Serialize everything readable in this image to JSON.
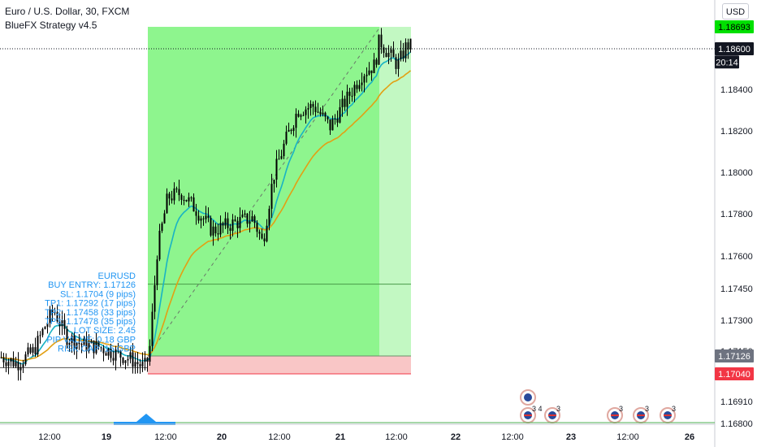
{
  "header": {
    "symbol_line": "Euro / U.S. Dollar, 30, FXCM",
    "indicator_line": "BlueFX Strategy v4.5",
    "currency_button": "USD"
  },
  "colors": {
    "profit_zone": "#8ef58e",
    "profit_zone_light": "#c2f8c2",
    "loss_zone": "#f9c6c6",
    "candle": "#000000",
    "ema_fast": "#19b3c4",
    "ema_slow": "#e2a014",
    "info_text": "#2196f3",
    "tag_green": "#00e000",
    "tag_dark": "#131722",
    "tag_gray": "#6e7380",
    "tag_red": "#f23645"
  },
  "chart_data": {
    "type": "candlestick",
    "ylim": [
      1.1675,
      1.1878
    ],
    "x_ticks": [
      "12:00",
      "19",
      "12:00",
      "20",
      "12:00",
      "21",
      "12:00",
      "22",
      "12:00",
      "23",
      "12:00",
      "26"
    ],
    "y_ticks": [
      "1.18600",
      "1.18400",
      "1.18200",
      "1.18000",
      "1.17800",
      "1.17600",
      "1.17450",
      "1.17300",
      "1.17150",
      "1.17040",
      "1.16910",
      "1.16800"
    ],
    "price_tags": [
      {
        "value": 1.18693,
        "label": "1.18693",
        "style": "green"
      },
      {
        "value": 1.186,
        "label": "1.18600",
        "style": "dark"
      },
      {
        "value": 1.18535,
        "label": "20:14",
        "style": "dark"
      },
      {
        "value": 1.17126,
        "label": "1.17126",
        "style": "gray"
      },
      {
        "value": 1.1704,
        "label": "1.17040",
        "style": "red"
      }
    ],
    "entry": 1.17126,
    "stop_loss": 1.1704,
    "take_profit": 1.18693,
    "close": 1.186,
    "trade_info": {
      "symbol": "EURUSD",
      "buy_entry": "BUY ENTRY: 1.17126",
      "sl": "SL: 1.1704 (9 pips)",
      "tp1": "TP1: 1.17292 (17 pips)",
      "tp2": "TP2: 1.17458 (33 pips)",
      "tp3": "TP3: 1.17478 (35 pips)",
      "lot_size": "LOT SIZE: 2.45",
      "pip_value": "PIP VALUE: 0.18 GBP",
      "risk": "RISK CAP: 15 GBP"
    },
    "events": [
      {
        "label": "3 4",
        "icon": "flag-event-icon"
      },
      {
        "label": "3",
        "icon": "flag-event-icon"
      },
      {
        "label": "3",
        "icon": "globe-event-icon"
      },
      {
        "label": "3",
        "icon": "flag-event-icon"
      },
      {
        "label": "3",
        "icon": "flag-event-icon"
      }
    ]
  }
}
